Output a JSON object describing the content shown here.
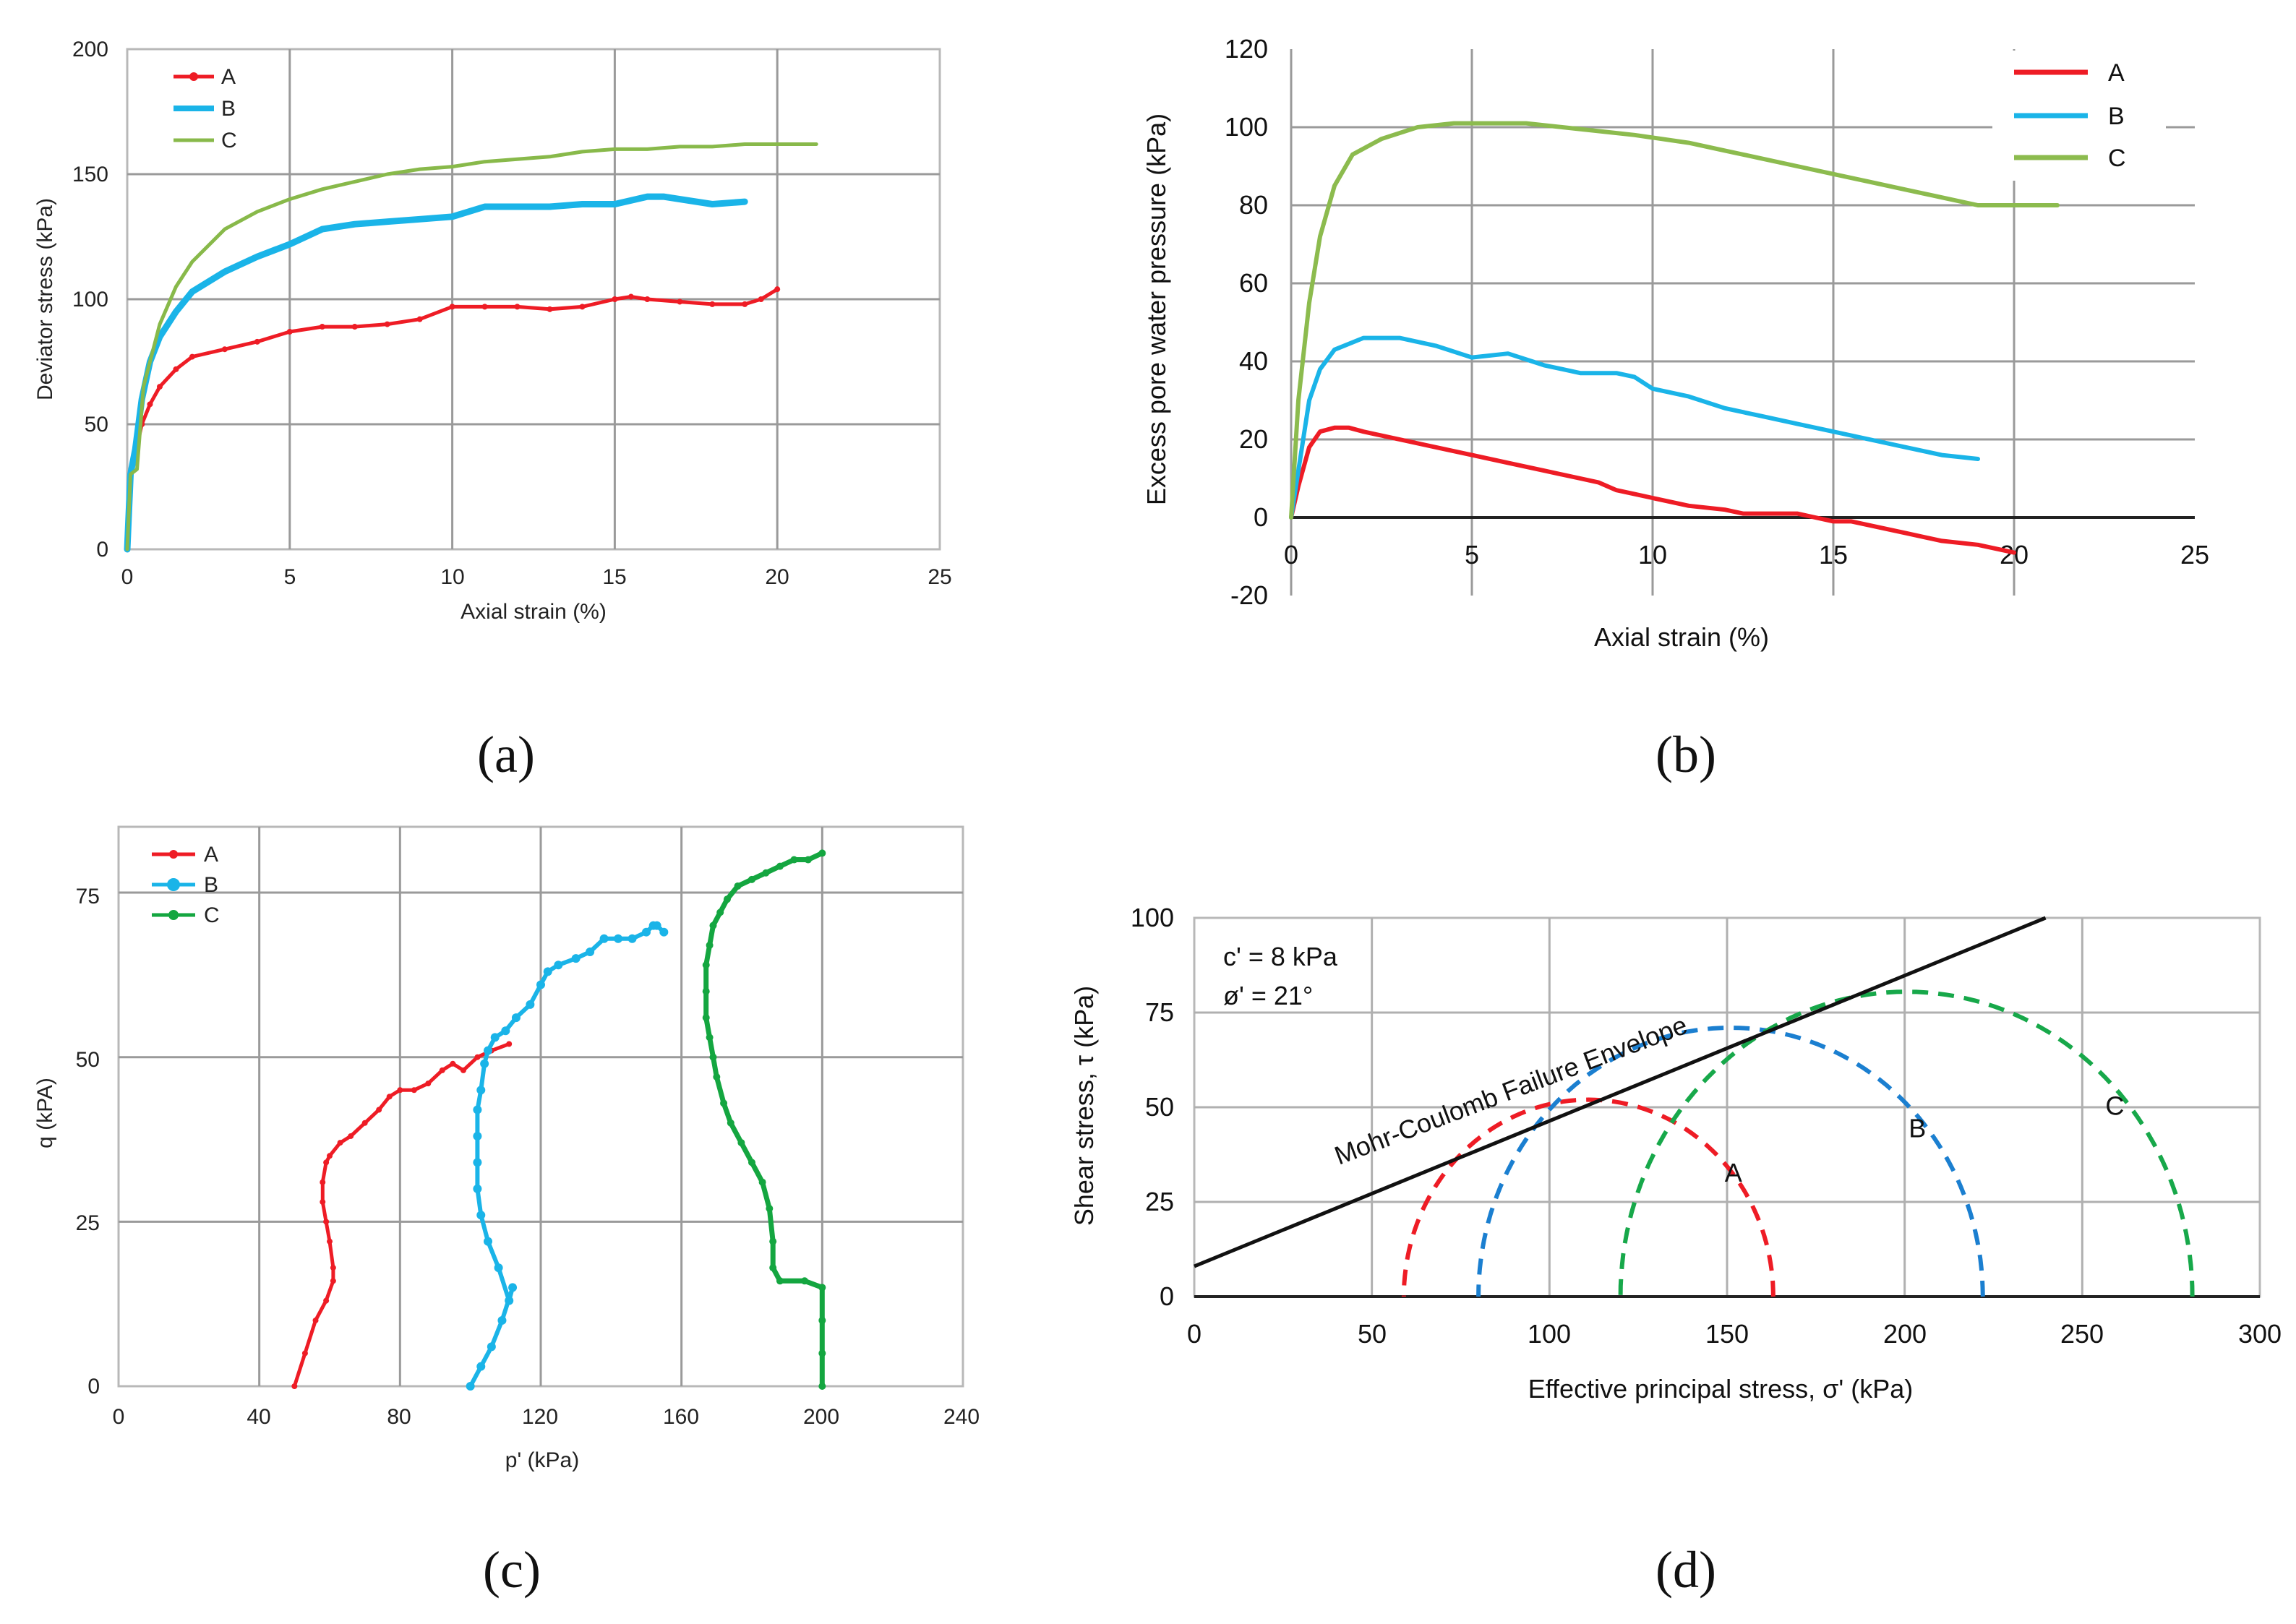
{
  "colors": {
    "A": "#ee1c25",
    "B": "#1ab4e8",
    "C_a": "#88b94a",
    "C_b": "#8cbb4e",
    "C_c": "#14a640",
    "d_A": "#ee1c25",
    "d_B": "#1b7fd0",
    "d_C": "#17a84a",
    "envelope": "#111111"
  },
  "chart_data": [
    {
      "id": "a",
      "panel_label": "(a)",
      "type": "line",
      "xlabel": "Axial strain (%)",
      "ylabel": "Deviator stress (kPa)",
      "xlim": [
        0,
        25
      ],
      "ylim": [
        0,
        200
      ],
      "xticks": [
        "0",
        "5",
        "10",
        "15",
        "20",
        "25"
      ],
      "yticks": [
        "0",
        "50",
        "100",
        "150",
        "200"
      ],
      "grid": true,
      "legend": "top-left",
      "series": [
        {
          "name": "A",
          "x": [
            0,
            0.1,
            0.25,
            0.45,
            0.7,
            1,
            1.5,
            2,
            3,
            4,
            5,
            6,
            7,
            8,
            9,
            10,
            11,
            12,
            13,
            14,
            15,
            15.5,
            16,
            17,
            18,
            19,
            19.5,
            20
          ],
          "y": [
            0,
            30,
            38,
            50,
            58,
            65,
            72,
            77,
            80,
            83,
            87,
            89,
            89,
            90,
            92,
            97,
            97,
            97,
            96,
            97,
            100,
            101,
            100,
            99,
            98,
            98,
            100,
            104
          ]
        },
        {
          "name": "B",
          "x": [
            0,
            0.1,
            0.25,
            0.45,
            0.7,
            1,
            1.5,
            2,
            3,
            4,
            5,
            6,
            7,
            8,
            9,
            10,
            11,
            12,
            13,
            14,
            15,
            16,
            16.5,
            17,
            18,
            19
          ],
          "y": [
            0,
            30,
            40,
            60,
            75,
            85,
            95,
            103,
            111,
            117,
            122,
            128,
            130,
            131,
            132,
            133,
            137,
            137,
            137,
            138,
            138,
            141,
            141,
            140,
            138,
            139
          ]
        },
        {
          "name": "C",
          "x": [
            0,
            0.1,
            0.3,
            0.5,
            1,
            1.5,
            2,
            3,
            4,
            5,
            6,
            7,
            8,
            9,
            10,
            11,
            12,
            13,
            14,
            15,
            16,
            17,
            18,
            19,
            20,
            21.2
          ],
          "y": [
            0,
            30,
            32,
            65,
            90,
            105,
            115,
            128,
            135,
            140,
            144,
            147,
            150,
            152,
            153,
            155,
            156,
            157,
            159,
            160,
            160,
            161,
            161,
            162,
            162,
            162
          ]
        }
      ]
    },
    {
      "id": "b",
      "panel_label": "(b)",
      "type": "line",
      "xlabel": "Axial strain (%)",
      "ylabel": "Excess pore water pressure (kPa)",
      "xlim": [
        0,
        25
      ],
      "ylim": [
        -20,
        120
      ],
      "xticks": [
        "0",
        "5",
        "10",
        "15",
        "20",
        "25"
      ],
      "yticks": [
        "-20",
        "0",
        "20",
        "40",
        "60",
        "80",
        "100",
        "120"
      ],
      "grid": true,
      "legend": "top-right",
      "series": [
        {
          "name": "A",
          "x": [
            0,
            0.2,
            0.5,
            0.8,
            1.2,
            1.6,
            2,
            3,
            4,
            5,
            6,
            7,
            8,
            8.5,
            9,
            9.5,
            10,
            11,
            12,
            12.5,
            13,
            14,
            14.5,
            15,
            15.5,
            16,
            17,
            18,
            19,
            20
          ],
          "y": [
            0,
            8,
            18,
            22,
            23,
            23,
            22,
            20,
            18,
            16,
            14,
            12,
            10,
            9,
            7,
            6,
            5,
            3,
            2,
            1,
            1,
            1,
            0,
            -1,
            -1,
            -2,
            -4,
            -6,
            -7,
            -9
          ]
        },
        {
          "name": "B",
          "x": [
            0,
            0.2,
            0.5,
            0.8,
            1.2,
            2,
            3,
            4,
            5,
            6,
            7,
            8,
            9,
            9.5,
            10,
            11,
            12,
            13,
            14,
            15,
            16,
            17,
            18,
            19
          ],
          "y": [
            0,
            12,
            30,
            38,
            43,
            46,
            46,
            44,
            41,
            42,
            39,
            37,
            37,
            36,
            33,
            31,
            28,
            26,
            24,
            22,
            20,
            18,
            16,
            15
          ]
        },
        {
          "name": "C",
          "x": [
            0,
            0.2,
            0.5,
            0.8,
            1.2,
            1.7,
            2.5,
            3.5,
            4.5,
            5.5,
            6.5,
            7.5,
            8.5,
            9.5,
            11,
            12,
            13,
            14,
            15,
            16,
            17,
            18,
            19,
            20,
            21.2
          ],
          "y": [
            0,
            30,
            55,
            72,
            85,
            93,
            97,
            100,
            101,
            101,
            101,
            100,
            99,
            98,
            96,
            94,
            92,
            90,
            88,
            86,
            84,
            82,
            80,
            80,
            80
          ]
        }
      ]
    },
    {
      "id": "c",
      "panel_label": "(c)",
      "type": "line",
      "xlabel": "p' (kPa)",
      "ylabel": "q (kPA)",
      "xlim": [
        0,
        240
      ],
      "ylim": [
        0,
        85
      ],
      "xticks": [
        "0",
        "40",
        "80",
        "120",
        "160",
        "200",
        "240"
      ],
      "yticks": [
        "0",
        "25",
        "50",
        "75"
      ],
      "grid": true,
      "legend": "top-left",
      "series": [
        {
          "name": "A",
          "x": [
            50,
            53,
            56,
            59,
            61,
            61,
            60,
            59,
            58,
            58,
            59,
            60,
            63,
            66,
            70,
            74,
            77,
            80,
            84,
            88,
            92,
            95,
            98,
            102,
            106,
            111
          ],
          "y": [
            0,
            5,
            10,
            13,
            16,
            18,
            22,
            25,
            28,
            31,
            34,
            35,
            37,
            38,
            40,
            42,
            44,
            45,
            45,
            46,
            48,
            49,
            48,
            50,
            51,
            52
          ]
        },
        {
          "name": "B",
          "x": [
            100,
            103,
            106,
            109,
            112,
            111,
            108,
            105,
            103,
            102,
            102,
            102,
            102,
            103,
            104,
            105,
            107,
            110,
            113,
            117,
            120,
            122,
            125,
            130,
            134,
            138,
            142,
            146,
            150,
            152,
            153,
            155
          ],
          "y": [
            0,
            3,
            6,
            10,
            15,
            13,
            18,
            22,
            26,
            30,
            34,
            38,
            42,
            45,
            49,
            51,
            53,
            54,
            56,
            58,
            61,
            63,
            64,
            65,
            66,
            68,
            68,
            68,
            69,
            70,
            70,
            69
          ]
        },
        {
          "name": "C",
          "x": [
            200,
            200,
            200,
            200,
            195,
            188,
            186,
            186,
            185,
            183,
            180,
            177,
            174,
            172,
            170,
            169,
            168,
            167,
            167,
            167,
            168,
            169,
            171,
            173,
            176,
            180,
            184,
            188,
            192,
            196,
            200
          ],
          "y": [
            0,
            5,
            10,
            15,
            16,
            16,
            18,
            22,
            27,
            31,
            34,
            37,
            40,
            43,
            47,
            50,
            53,
            56,
            60,
            64,
            67,
            70,
            72,
            74,
            76,
            77,
            78,
            79,
            80,
            80,
            81
          ]
        }
      ]
    },
    {
      "id": "d",
      "panel_label": "(d)",
      "type": "line",
      "xlabel": "Effective principal stress, σ' (kPa)",
      "ylabel": "Shear stress, τ (kPa)",
      "xlim": [
        0,
        300
      ],
      "ylim": [
        0,
        100
      ],
      "xticks": [
        "0",
        "50",
        "100",
        "150",
        "200",
        "250",
        "300"
      ],
      "yticks": [
        "0",
        "25",
        "50",
        "75",
        "100"
      ],
      "grid": true,
      "legend": "none",
      "annotations": {
        "cohesion": "c' = 8 kPa",
        "friction": "ø' = 21°",
        "envelope_label": "Mohr-Coulomb Failure  Envelope"
      },
      "envelope": {
        "c": 8,
        "phi_deg": 21
      },
      "circles": [
        {
          "name": "A",
          "sigma3": 59,
          "sigma1": 163
        },
        {
          "name": "B",
          "sigma3": 80,
          "sigma1": 222
        },
        {
          "name": "C",
          "sigma3": 120,
          "sigma1": 281
        }
      ]
    }
  ]
}
